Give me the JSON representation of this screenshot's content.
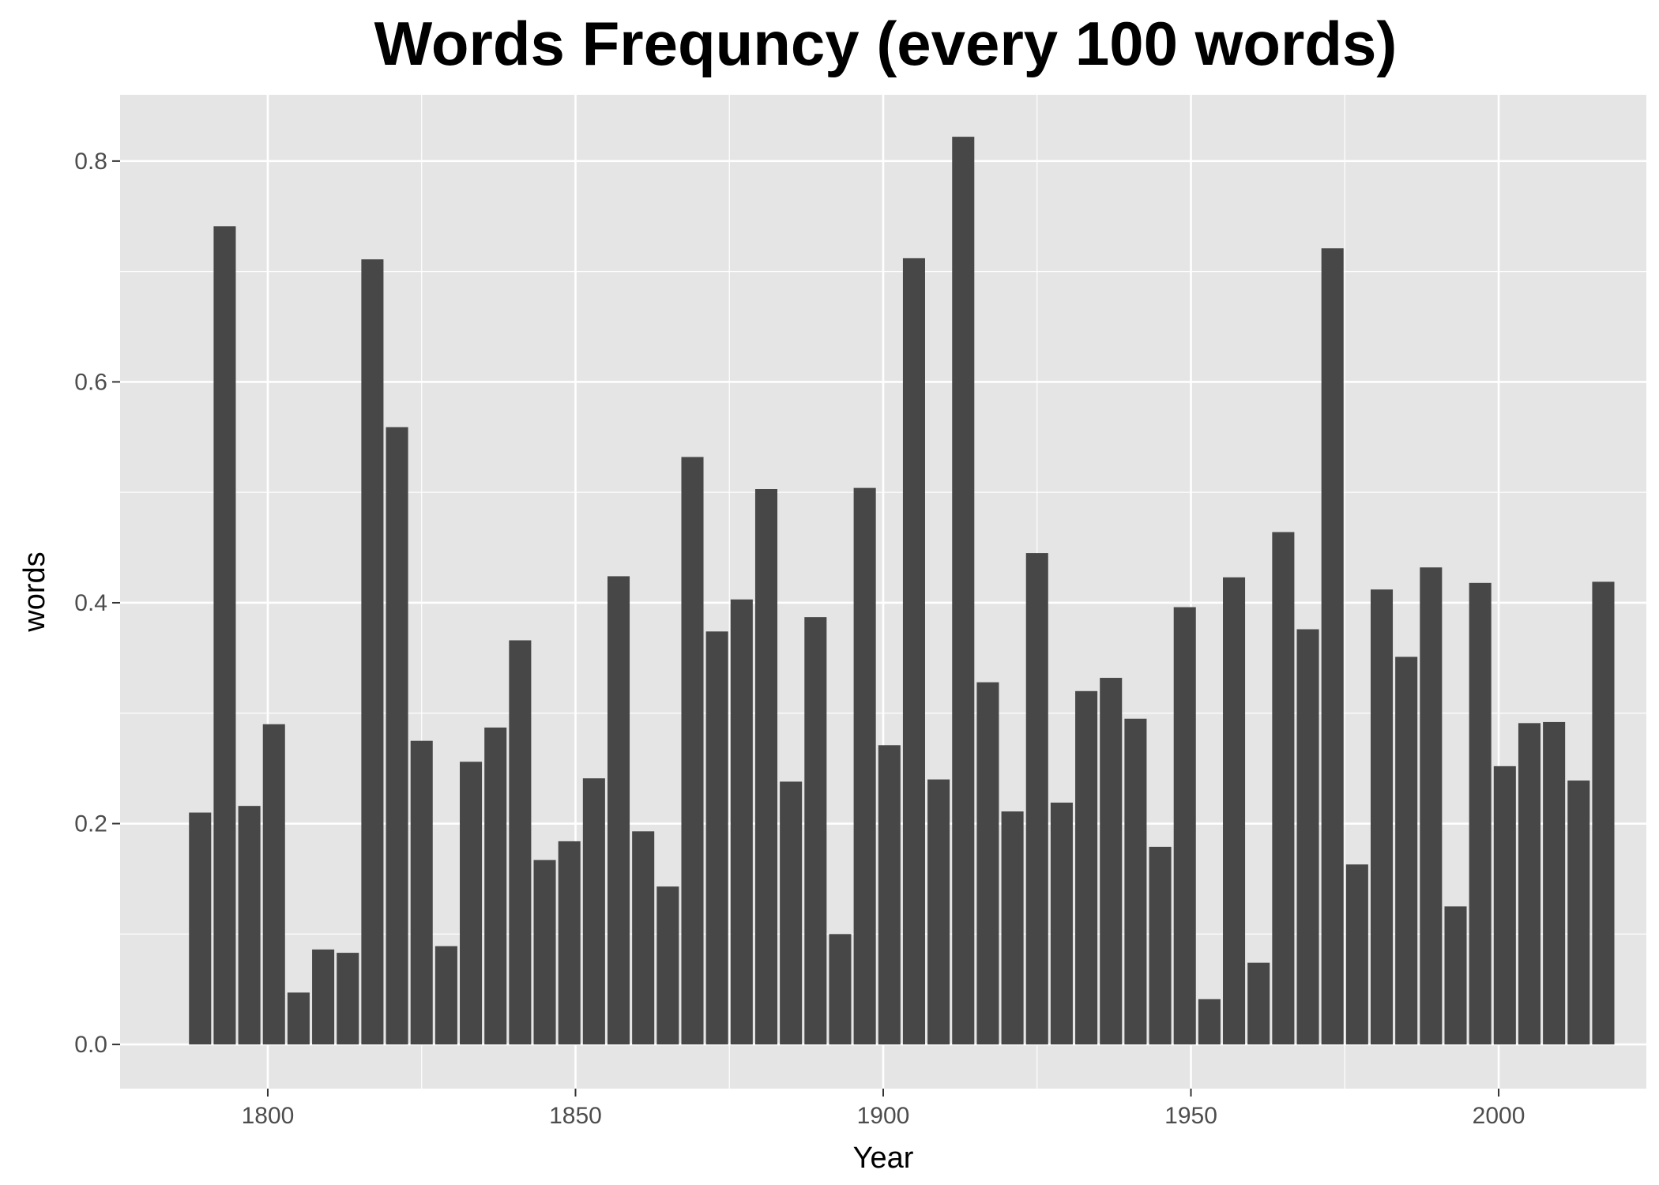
{
  "chart_data": {
    "type": "bar",
    "title": "Words Frequncy (every 100 words)",
    "xlabel": "Year",
    "ylabel": "words",
    "xlim": [
      1776,
      2024
    ],
    "ylim": [
      -0.04,
      0.86
    ],
    "x_ticks": [
      1800,
      1850,
      1900,
      1950,
      2000
    ],
    "x_tick_labels": [
      "1800",
      "1850",
      "1900",
      "1950",
      "2000"
    ],
    "y_ticks": [
      0.0,
      0.2,
      0.4,
      0.6,
      0.8
    ],
    "y_tick_labels": [
      "0.0",
      "0.2",
      "0.4",
      "0.6",
      "0.8"
    ],
    "grid": true,
    "legend": "none",
    "bar_width_years": 3.6,
    "colors": {
      "bar": "#474747",
      "panel": "#e5e5e5",
      "grid": "#ffffff",
      "tick": "#333333"
    },
    "x": [
      1789,
      1793,
      1797,
      1801,
      1805,
      1809,
      1813,
      1817,
      1821,
      1825,
      1829,
      1833,
      1837,
      1841,
      1845,
      1849,
      1853,
      1857,
      1861,
      1865,
      1869,
      1873,
      1877,
      1881,
      1885,
      1889,
      1893,
      1897,
      1901,
      1905,
      1909,
      1913,
      1917,
      1921,
      1925,
      1929,
      1933,
      1937,
      1941,
      1945,
      1949,
      1953,
      1957,
      1961,
      1965,
      1969,
      1973,
      1977,
      1981,
      1985,
      1989,
      1993,
      1997,
      2001,
      2005,
      2009,
      2013,
      2017
    ],
    "values": [
      0.21,
      0.741,
      0.216,
      0.29,
      0.047,
      0.086,
      0.083,
      0.711,
      0.559,
      0.275,
      0.089,
      0.256,
      0.287,
      0.366,
      0.167,
      0.184,
      0.241,
      0.424,
      0.193,
      0.143,
      0.532,
      0.374,
      0.403,
      0.503,
      0.238,
      0.387,
      0.1,
      0.504,
      0.271,
      0.712,
      0.24,
      0.822,
      0.328,
      0.211,
      0.445,
      0.219,
      0.32,
      0.332,
      0.295,
      0.179,
      0.396,
      0.041,
      0.423,
      0.074,
      0.464,
      0.376,
      0.721,
      0.163,
      0.412,
      0.351,
      0.432,
      0.125,
      0.418,
      0.252,
      0.291,
      0.292,
      0.239,
      0.419
    ]
  }
}
